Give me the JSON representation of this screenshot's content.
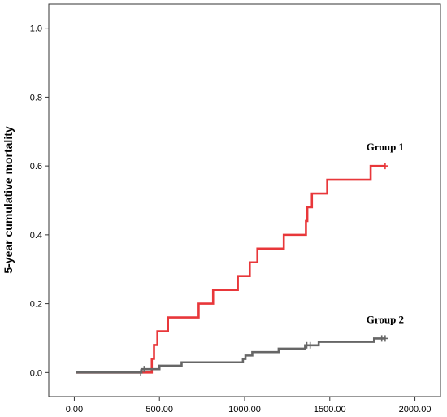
{
  "chart_data": {
    "type": "line",
    "title": "",
    "xlabel": "",
    "ylabel": "5-year cumulative mortality",
    "xlim": [
      -150,
      2150
    ],
    "ylim": [
      -0.07,
      1.07
    ],
    "x_ticks": [
      0,
      500,
      1000,
      1500,
      2000
    ],
    "x_tick_labels": [
      "0.00",
      "500.00",
      "1000.00",
      "1500.00",
      "2000.00"
    ],
    "y_ticks": [
      0.0,
      0.2,
      0.4,
      0.6,
      0.8,
      1.0
    ],
    "y_tick_labels": [
      "0.0",
      "0.2",
      "0.4",
      "0.6",
      "0.8",
      "1.0"
    ],
    "grid": false,
    "step": true,
    "series": [
      {
        "name": "Group 1",
        "color": "#e8373a",
        "censored_at": [
          1825
        ],
        "points": [
          [
            10,
            0.0
          ],
          [
            450,
            0.0
          ],
          [
            455,
            0.04
          ],
          [
            468,
            0.08
          ],
          [
            488,
            0.12
          ],
          [
            550,
            0.16
          ],
          [
            730,
            0.2
          ],
          [
            815,
            0.24
          ],
          [
            960,
            0.28
          ],
          [
            1030,
            0.32
          ],
          [
            1075,
            0.36
          ],
          [
            1230,
            0.4
          ],
          [
            1360,
            0.44
          ],
          [
            1368,
            0.48
          ],
          [
            1395,
            0.52
          ],
          [
            1485,
            0.56
          ],
          [
            1740,
            0.6
          ],
          [
            1825,
            0.6
          ]
        ]
      },
      {
        "name": "Group 2",
        "color": "#666666",
        "censored_at": [
          390,
          410,
          1365,
          1385,
          1805,
          1825
        ],
        "points": [
          [
            10,
            0.0
          ],
          [
            385,
            0.0
          ],
          [
            395,
            0.0099
          ],
          [
            500,
            0.0198
          ],
          [
            630,
            0.0297
          ],
          [
            990,
            0.0396
          ],
          [
            1005,
            0.0495
          ],
          [
            1045,
            0.0594
          ],
          [
            1200,
            0.0693
          ],
          [
            1355,
            0.0792
          ],
          [
            1435,
            0.0891
          ],
          [
            1760,
            0.099
          ],
          [
            1825,
            0.099
          ]
        ]
      }
    ]
  }
}
